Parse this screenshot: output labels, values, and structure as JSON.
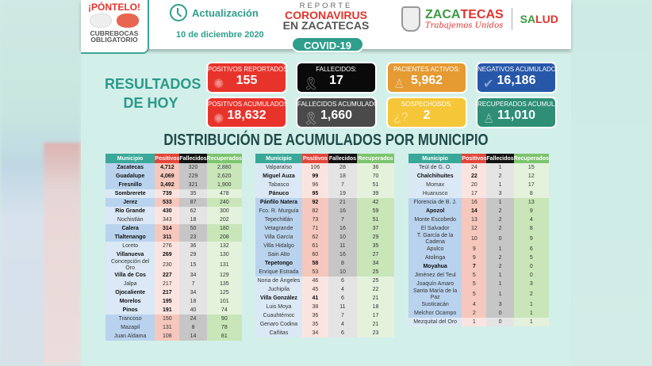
{
  "header": {
    "campaign_title": "¡PÓNTELO!",
    "campaign_subtitle": "CUBREBOCAS OBLIGATORIO",
    "update_label": "Actualización",
    "date": "10 de diciembre 2020",
    "report_l1": "REPORTE",
    "report_l2": "CORONAVIRUS",
    "report_l3": "EN ZACATECAS",
    "covid_badge": "COVID-19",
    "state_logo_a": "ZACA",
    "state_logo_b": "TECAS",
    "state_slogan": "Trabajemos Unidos",
    "salud_a": "SA",
    "salud_b": "LUD"
  },
  "results_title": "RESULTADOS DE HOY",
  "cards": [
    {
      "label": "POSITIVOS REPORTADOS :",
      "value": "155",
      "color": "#e8332b",
      "icon": "virus-icon"
    },
    {
      "label": "FALLECIDOS:",
      "value": "17",
      "color": "#0a0a0a",
      "icon": "ribbon-icon"
    },
    {
      "label": "PACIENTES ACTIVOS:",
      "value": "5,962",
      "color": "#e59a32",
      "icon": "person-icon"
    },
    {
      "label": "NEGATIVOS ACUMULADOS:",
      "value": "16,186",
      "color": "#2757a8",
      "icon": "check-icon"
    },
    {
      "label": "POSITIVOS ACUMULADOS:",
      "value": "18,632",
      "color": "#e8332b",
      "icon": "virus-icon"
    },
    {
      "label": "FALLECIDOS ACUMULADOS:",
      "value": "1,660",
      "color": "#4a4a4a",
      "icon": "ribbon-icon"
    },
    {
      "label": "SOSPECHOSOS:",
      "value": "2",
      "color": "#f5c638",
      "icon": "question-icon"
    },
    {
      "label": "RECUPERADOS ACUMULADOS:",
      "value": "11,010",
      "color": "#2e8f76",
      "icon": "person-icon"
    }
  ],
  "distribution_title": "DISTRIBUCIÓN DE ACUMULADOS POR MUNICIPIO",
  "columns": [
    "Municipio",
    "Positivos",
    "Fallecidos",
    "Recuperados"
  ],
  "tables": [
    [
      [
        "Zacatecas",
        "4,712",
        "320",
        "2,880"
      ],
      [
        "Guadalupe",
        "4,069",
        "229",
        "2,620"
      ],
      [
        "Fresnillo",
        "3,492",
        "321",
        "1,900"
      ],
      [
        "Sombrerete",
        "739",
        "35",
        "478"
      ],
      [
        "Jerez",
        "533",
        "87",
        "240"
      ],
      [
        "Río Grande",
        "430",
        "62",
        "300"
      ],
      [
        "Nochistlán",
        "343",
        "18",
        "202"
      ],
      [
        "Calera",
        "314",
        "50",
        "180"
      ],
      [
        "Tlaltenango",
        "311",
        "23",
        "208"
      ],
      [
        "Loreto",
        "276",
        "36",
        "132"
      ],
      [
        "Villanueva",
        "269",
        "29",
        "130"
      ],
      [
        "Concepción del Oro",
        "230",
        "15",
        "131"
      ],
      [
        "Villa de Cos",
        "227",
        "34",
        "129"
      ],
      [
        "Jalpa",
        "217",
        "7",
        "135"
      ],
      [
        "Ojocaliente",
        "217",
        "34",
        "125"
      ],
      [
        "Morelos",
        "195",
        "18",
        "101"
      ],
      [
        "Pinos",
        "191",
        "40",
        "74"
      ],
      [
        "Trancoso",
        "150",
        "24",
        "90"
      ],
      [
        "Mazapil",
        "131",
        "8",
        "78"
      ],
      [
        "Juan Aldama",
        "108",
        "14",
        "81"
      ]
    ],
    [
      [
        "Valparaíso",
        "106",
        "28",
        "36"
      ],
      [
        "Miguel Auza",
        "99",
        "18",
        "70"
      ],
      [
        "Tabasco",
        "96",
        "7",
        "51"
      ],
      [
        "Pánuco",
        "95",
        "19",
        "39"
      ],
      [
        "Pánfilo Natera",
        "92",
        "21",
        "42"
      ],
      [
        "Fco. R. Murguía",
        "82",
        "16",
        "59"
      ],
      [
        "Tepechitlán",
        "73",
        "7",
        "51"
      ],
      [
        "Vetagrande",
        "71",
        "16",
        "37"
      ],
      [
        "Villa García",
        "62",
        "10",
        "29"
      ],
      [
        "Villa Hidalgo",
        "61",
        "11",
        "35"
      ],
      [
        "Sain Alto",
        "60",
        "16",
        "27"
      ],
      [
        "Tepetongo",
        "58",
        "8",
        "34"
      ],
      [
        "Enrique Estrada",
        "53",
        "10",
        "25"
      ],
      [
        "Noria de Ángeles",
        "46",
        "6",
        "25"
      ],
      [
        "Juchipila",
        "45",
        "4",
        "22"
      ],
      [
        "Villa González",
        "41",
        "6",
        "21"
      ],
      [
        "Luis Moya",
        "38",
        "11",
        "18"
      ],
      [
        "Cuauhtémoc",
        "36",
        "7",
        "17"
      ],
      [
        "Genaro Codina",
        "35",
        "4",
        "21"
      ],
      [
        "Cañitas",
        "34",
        "6",
        "23"
      ]
    ],
    [
      [
        "Teúl de G. O.",
        "24",
        "1",
        "15"
      ],
      [
        "Chalchihuites",
        "22",
        "2",
        "12"
      ],
      [
        "Momax",
        "20",
        "1",
        "17"
      ],
      [
        "Huanusco",
        "17",
        "3",
        "8"
      ],
      [
        "Florencia de B. J.",
        "16",
        "1",
        "13"
      ],
      [
        "Apozol",
        "14",
        "2",
        "9"
      ],
      [
        "Monte Escobedo",
        "13",
        "2",
        "4"
      ],
      [
        "El Salvador",
        "12",
        "2",
        "8"
      ],
      [
        "T. García de la Cadena",
        "10",
        "0",
        "9"
      ],
      [
        "Apulco",
        "9",
        "1",
        "6"
      ],
      [
        "Atolinga",
        "9",
        "2",
        "5"
      ],
      [
        "Moyahua",
        "7",
        "2",
        "0"
      ],
      [
        "Jiménez del Teul",
        "5",
        "1",
        "0"
      ],
      [
        "Joaquín Amaro",
        "5",
        "1",
        "3"
      ],
      [
        "Santa María de la Paz",
        "5",
        "1",
        "2"
      ],
      [
        "Susticacán",
        "4",
        "3",
        "1"
      ],
      [
        "Melchor Ocampo",
        "2",
        "0",
        "1"
      ],
      [
        "Mezquital del Oro",
        "1",
        "0",
        "1"
      ]
    ]
  ]
}
